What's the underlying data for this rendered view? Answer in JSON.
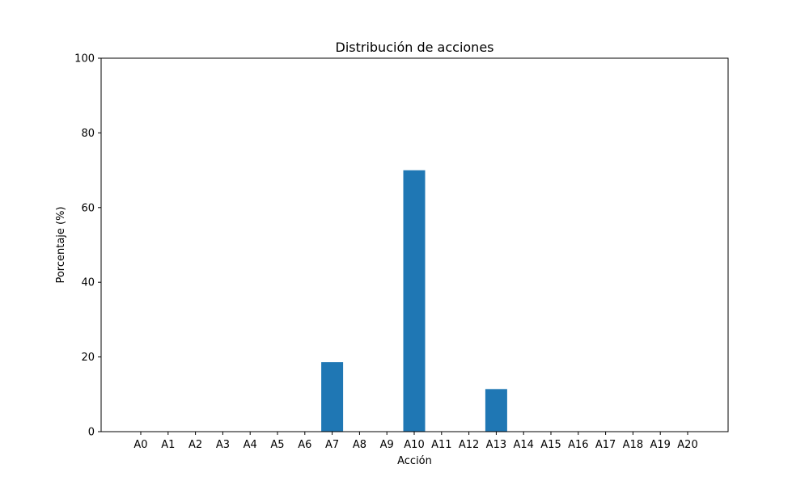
{
  "chart_data": {
    "type": "bar",
    "title": "Distribución de acciones",
    "xlabel": "Acción",
    "ylabel": "Porcentaje (%)",
    "categories": [
      "A0",
      "A1",
      "A2",
      "A3",
      "A4",
      "A5",
      "A6",
      "A7",
      "A8",
      "A9",
      "A10",
      "A11",
      "A12",
      "A13",
      "A14",
      "A15",
      "A16",
      "A17",
      "A18",
      "A19",
      "A20"
    ],
    "values": [
      0,
      0,
      0,
      0,
      0,
      0,
      0,
      18.6,
      0,
      0,
      70.0,
      0,
      0,
      11.4,
      0,
      0,
      0,
      0,
      0,
      0,
      0
    ],
    "ylim": [
      0,
      100
    ],
    "yticks": [
      0,
      20,
      40,
      60,
      80,
      100
    ],
    "grid": false,
    "bar_color": "#1f77b4"
  }
}
